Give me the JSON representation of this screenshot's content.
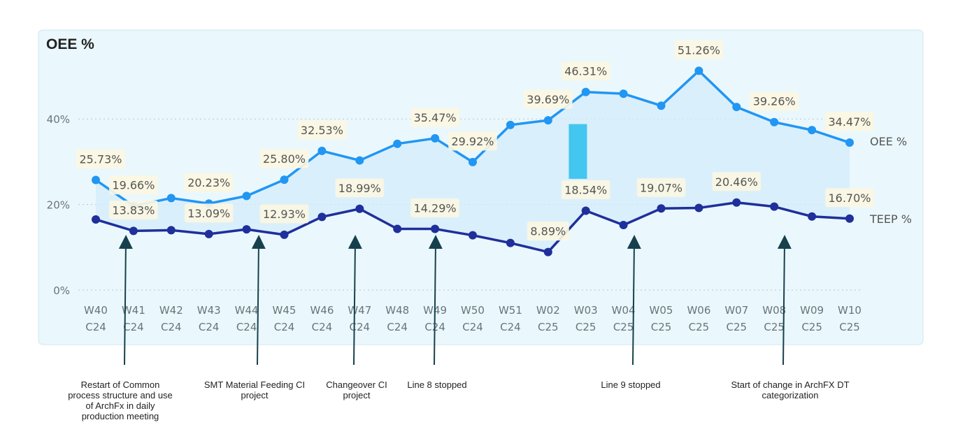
{
  "chart_data": {
    "type": "line",
    "title": "OEE %",
    "categories": [
      [
        "W40",
        "C24"
      ],
      [
        "W41",
        "C24"
      ],
      [
        "W42",
        "C24"
      ],
      [
        "W43",
        "C24"
      ],
      [
        "W44",
        "C24"
      ],
      [
        "W45",
        "C24"
      ],
      [
        "W46",
        "C24"
      ],
      [
        "W47",
        "C24"
      ],
      [
        "W48",
        "C24"
      ],
      [
        "W49",
        "C24"
      ],
      [
        "W50",
        "C24"
      ],
      [
        "W51",
        "C24"
      ],
      [
        "W02",
        "C25"
      ],
      [
        "W03",
        "C25"
      ],
      [
        "W04",
        "C25"
      ],
      [
        "W05",
        "C25"
      ],
      [
        "W06",
        "C25"
      ],
      [
        "W07",
        "C25"
      ],
      [
        "W08",
        "C25"
      ],
      [
        "W09",
        "C25"
      ],
      [
        "W10",
        "C25"
      ]
    ],
    "yticks": [
      "0%",
      "20%",
      "40%"
    ],
    "ylim": [
      0,
      55
    ],
    "grid": true,
    "series": [
      {
        "name": "OEE %",
        "color": "#2196f3",
        "values": [
          25.73,
          19.66,
          21.5,
          20.23,
          22.0,
          25.8,
          32.53,
          30.3,
          34.2,
          35.47,
          29.92,
          38.6,
          39.69,
          46.31,
          45.9,
          43.1,
          51.26,
          42.8,
          39.26,
          37.4,
          34.47
        ],
        "labels": [
          "25.73%",
          "19.66%",
          null,
          "20.23%",
          null,
          "25.80%",
          "32.53%",
          null,
          null,
          "35.47%",
          "29.92%",
          null,
          "39.69%",
          "46.31%",
          null,
          null,
          "51.26%",
          null,
          "39.26%",
          null,
          "34.47%"
        ]
      },
      {
        "name": "TEEP %",
        "color": "#1f2f9b",
        "values": [
          16.5,
          13.83,
          14.0,
          13.09,
          14.2,
          12.93,
          17.1,
          18.99,
          14.3,
          14.29,
          12.8,
          11.0,
          8.89,
          18.54,
          15.2,
          19.07,
          19.2,
          20.46,
          19.5,
          17.2,
          16.7
        ],
        "labels": [
          null,
          "13.83%",
          null,
          "13.09%",
          null,
          "12.93%",
          null,
          "18.99%",
          null,
          "14.29%",
          null,
          null,
          "8.89%",
          "18.54%",
          null,
          "19.07%",
          null,
          "20.46%",
          null,
          null,
          "16.70%"
        ]
      }
    ],
    "annotations": [
      {
        "category": "W41",
        "text": "Restart of Common process structure and use of ArchFx in daily production meeting"
      },
      {
        "category": "W44",
        "text": "SMT Material Feeding CI project"
      },
      {
        "category": "W47",
        "text": "Changeover CI project"
      },
      {
        "category": "W49",
        "text": "Line 8 stopped"
      },
      {
        "category": "W04",
        "text": "Line 9 stopped"
      },
      {
        "category": "W08",
        "text": "Start of change in ArchFX DT categorization"
      }
    ],
    "colors": {
      "panel_bg": "#eaf8fd",
      "panel_border": "#cfe6ef",
      "label_bg": "#fbf6e2",
      "area_fill": "#d4ecfb",
      "highlight_bar": "#43c6f0",
      "arrow": "#17404d"
    }
  }
}
